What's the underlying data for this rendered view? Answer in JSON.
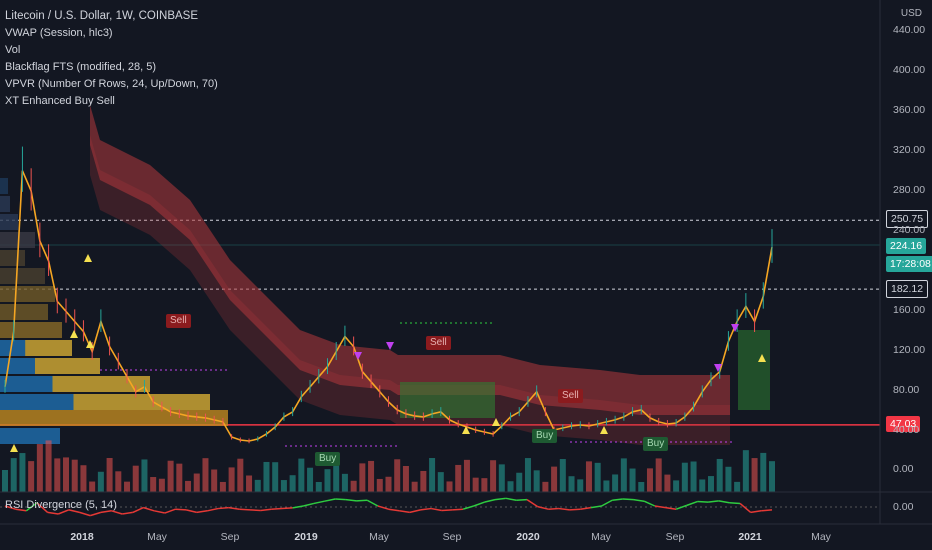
{
  "legend": {
    "title": "Litecoin / U.S. Dollar, 1W, COINBASE",
    "vwap": "VWAP (Session, hlc3)",
    "vol": "Vol",
    "blackflag": "Blackflag FTS (modified, 28, 5)",
    "vpvr": "VPVR (Number Of Rows, 24, Up/Down, 70)",
    "xt": "XT Enhanced Buy Sell"
  },
  "rsi_label": "RSI Divergence (5, 14)",
  "currency": "USD",
  "badges": {
    "resistance": "250.75",
    "last_price": "224.16",
    "countdown": "17:28:08",
    "level_182": "182.12",
    "support": "47.03"
  },
  "signals": {
    "sell": [
      "Sell",
      "Sell",
      "Sell"
    ],
    "buy": [
      "Buy",
      "Buy",
      "Buy"
    ]
  },
  "colors": {
    "background": "#131722",
    "support_line": "#f23645",
    "up": "#26a69a",
    "down": "#ef5350",
    "price_line": "#f5a623",
    "cloud": "#b2393d",
    "rsi_up": "#2ecc40",
    "rsi_down": "#e53935"
  },
  "chart_data": {
    "type": "line",
    "title": "Litecoin / U.S. Dollar, 1W, COINBASE",
    "x_ticks": [
      "2018",
      "May",
      "Sep",
      "2019",
      "May",
      "Sep",
      "2020",
      "May",
      "Sep",
      "2021",
      "May"
    ],
    "y_ticks": [
      "440.00",
      "400.00",
      "360.00",
      "320.00",
      "280.00",
      "240.00",
      "160.00",
      "120.00",
      "80.00",
      "40.00",
      "0.00",
      "0.00"
    ],
    "ylim": [
      30,
      450
    ],
    "reference_lines": [
      250.75,
      182.12,
      47.03
    ],
    "series": [
      {
        "values": [
          85,
          140,
          300,
          280,
          230,
          210,
          170,
          160,
          150,
          140,
          120,
          150,
          125,
          110,
          95,
          80,
          85,
          70,
          65,
          60,
          58,
          56,
          55,
          54,
          52,
          50,
          35,
          32,
          31,
          33,
          38,
          45,
          55,
          60,
          75,
          85,
          95,
          105,
          120,
          135,
          125,
          100,
          90,
          80,
          70,
          62,
          58,
          56,
          55,
          58,
          60,
          52,
          48,
          45,
          42,
          40,
          38,
          46,
          55,
          60,
          70,
          80,
          60,
          42,
          44,
          46,
          47,
          46,
          48,
          50,
          52,
          55,
          60,
          62,
          54,
          50,
          48,
          49,
          55,
          65,
          80,
          92,
          100,
          130,
          150,
          165,
          150,
          175,
          224
        ]
      }
    ],
    "rsi": {
      "label": "RSI Divergence (5, 14)",
      "values": [
        50,
        40,
        35,
        60,
        30,
        25,
        38,
        30,
        20,
        30,
        35,
        25,
        30,
        45,
        35,
        28,
        40,
        38,
        30,
        35,
        42,
        45,
        40,
        38,
        36,
        40,
        42,
        44,
        50,
        58,
        65,
        72,
        70,
        66,
        68,
        50,
        40,
        35,
        30,
        38,
        42,
        36,
        38,
        40,
        50,
        62,
        70,
        74,
        68,
        70,
        48,
        40,
        42,
        38,
        40,
        45,
        50,
        68,
        72,
        70,
        65,
        50,
        45,
        40,
        52,
        64,
        62,
        66,
        60,
        58,
        30,
        35,
        38
      ]
    }
  }
}
